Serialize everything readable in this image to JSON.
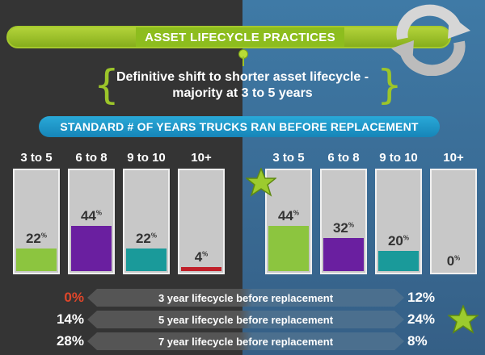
{
  "header": {
    "title": "ASSET LIFECYCLE PRACTICES",
    "subtitle_line1": "Definitive shift to shorter asset lifecycle -",
    "subtitle_line2": "majority at 3 to 5 years"
  },
  "section": {
    "title": "STANDARD # OF YEARS TRUCKS RAN BEFORE REPLACEMENT"
  },
  "chart_data": [
    {
      "type": "bar",
      "categories": [
        "3 to 5",
        "6 to 8",
        "9 to 10",
        "10+"
      ],
      "values": [
        22,
        44,
        22,
        4
      ],
      "value_labels": [
        "22",
        "44",
        "22",
        "4"
      ],
      "colors": [
        "#8cc53f",
        "#6a1fa0",
        "#1a9a9a",
        "#c0202a"
      ],
      "ylim": [
        0,
        100
      ]
    },
    {
      "type": "bar",
      "categories": [
        "3 to 5",
        "6 to 8",
        "9 to 10",
        "10+"
      ],
      "values": [
        44,
        32,
        20,
        0
      ],
      "value_labels": [
        "44",
        "32",
        "20",
        "0"
      ],
      "colors": [
        "#8cc53f",
        "#6a1fa0",
        "#1a9a9a",
        "#c0202a"
      ],
      "ylim": [
        0,
        100
      ]
    }
  ],
  "percent_symbol": "%",
  "comparison_rows": [
    {
      "label": "3 year lifecycle before replacement",
      "left": "0%",
      "right": "12%",
      "left_color": "#e0462a"
    },
    {
      "label": "5 year lifecycle before replacement",
      "left": "14%",
      "right": "24%",
      "left_color": "#ffffff"
    },
    {
      "label": "7 year lifecycle before replacement",
      "left": "28%",
      "right": "8%",
      "left_color": "#ffffff"
    }
  ],
  "icons": {
    "header_icon": "recycle-arrows-icon",
    "highlight_icon": "star-icon"
  }
}
